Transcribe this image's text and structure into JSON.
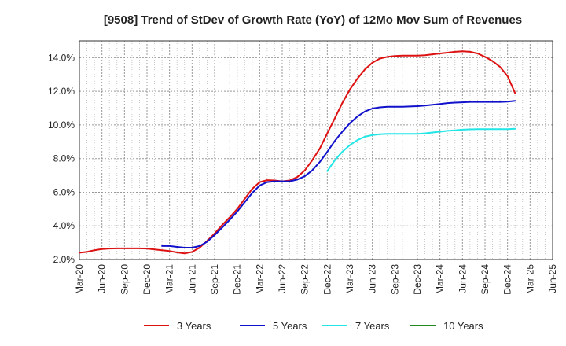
{
  "chart_data": {
    "type": "line",
    "title": "[9508]  Trend of StDev of Growth Rate (YoY) of 12Mo Mov Sum of Revenues",
    "xlabel": "",
    "ylabel": "",
    "x_ticks": [
      "Mar-20",
      "Jun-20",
      "Sep-20",
      "Dec-20",
      "Mar-21",
      "Jun-21",
      "Sep-21",
      "Dec-21",
      "Mar-22",
      "Jun-22",
      "Sep-22",
      "Dec-22",
      "Mar-23",
      "Jun-23",
      "Sep-23",
      "Dec-23",
      "Mar-24",
      "Jun-24",
      "Sep-24",
      "Dec-24",
      "Mar-25",
      "Jun-25"
    ],
    "y_ticks": [
      "2.0%",
      "4.0%",
      "6.0%",
      "8.0%",
      "10.0%",
      "12.0%",
      "14.0%"
    ],
    "ylim": [
      2.0,
      15.0
    ],
    "grid": true,
    "legend_position": "bottom",
    "series": [
      {
        "name": "3 Years",
        "color": "#dd1111",
        "values": [
          2.4,
          2.45,
          2.55,
          2.62,
          2.65,
          2.66,
          2.66,
          2.66,
          2.66,
          2.65,
          2.6,
          2.55,
          2.5,
          2.42,
          2.36,
          2.45,
          2.7,
          3.1,
          3.55,
          4.05,
          4.5,
          5.0,
          5.6,
          6.2,
          6.6,
          6.72,
          6.7,
          6.65,
          6.7,
          6.9,
          7.3,
          7.9,
          8.6,
          9.5,
          10.4,
          11.3,
          12.1,
          12.75,
          13.3,
          13.7,
          13.95,
          14.05,
          14.1,
          14.12,
          14.12,
          14.12,
          14.15,
          14.2,
          14.25,
          14.3,
          14.35,
          14.38,
          14.35,
          14.25,
          14.05,
          13.8,
          13.45,
          12.9,
          11.9
        ]
      },
      {
        "name": "5 Years",
        "color": "#1111cc",
        "values": [
          null,
          null,
          null,
          null,
          null,
          null,
          null,
          null,
          null,
          null,
          null,
          2.8,
          2.8,
          2.75,
          2.7,
          2.7,
          2.8,
          3.05,
          3.45,
          3.9,
          4.35,
          4.85,
          5.4,
          5.95,
          6.4,
          6.6,
          6.65,
          6.65,
          6.65,
          6.75,
          6.95,
          7.3,
          7.8,
          8.4,
          9.05,
          9.6,
          10.1,
          10.5,
          10.8,
          10.98,
          11.05,
          11.08,
          11.08,
          11.08,
          11.1,
          11.12,
          11.15,
          11.2,
          11.25,
          11.3,
          11.33,
          11.35,
          11.37,
          11.37,
          11.37,
          11.37,
          11.37,
          11.39,
          11.43
        ]
      },
      {
        "name": "7 Years",
        "color": "#22e5e5",
        "values": [
          null,
          null,
          null,
          null,
          null,
          null,
          null,
          null,
          null,
          null,
          null,
          null,
          null,
          null,
          null,
          null,
          null,
          null,
          null,
          null,
          null,
          null,
          null,
          null,
          null,
          null,
          null,
          null,
          null,
          null,
          null,
          null,
          null,
          7.25,
          7.9,
          8.4,
          8.8,
          9.1,
          9.3,
          9.4,
          9.45,
          9.47,
          9.47,
          9.47,
          9.47,
          9.47,
          9.5,
          9.55,
          9.6,
          9.65,
          9.68,
          9.72,
          9.74,
          9.75,
          9.75,
          9.75,
          9.75,
          9.75,
          9.77
        ]
      },
      {
        "name": "10 Years",
        "color": "#228822",
        "values": []
      }
    ]
  }
}
